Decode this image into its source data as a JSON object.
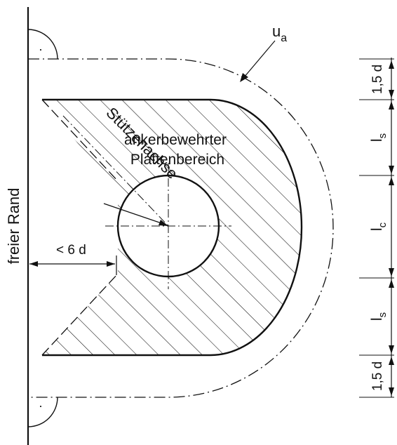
{
  "labels": {
    "edge": "freier Rand",
    "perimeter_main": "u",
    "perimeter_sub": "a",
    "column_axis": "Stützenachse",
    "region_line1": "ankerbewehrter",
    "region_line2": "Plattenbereich",
    "edge_distance": "< 6 d",
    "right_angle_mark": "·"
  },
  "dimensions": [
    {
      "main": "1,5 d",
      "sub": ""
    },
    {
      "main": "l",
      "sub": "s"
    },
    {
      "main": "l",
      "sub": "c"
    },
    {
      "main": "l",
      "sub": "s"
    },
    {
      "main": "1,5 d",
      "sub": ""
    }
  ],
  "colors": {
    "line": "#111111",
    "background": "#ffffff"
  }
}
